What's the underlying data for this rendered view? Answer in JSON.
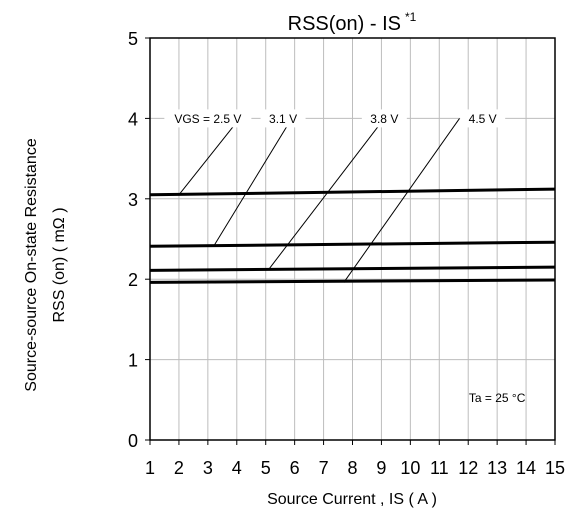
{
  "chart_data": {
    "type": "line",
    "title": "RSS(on) - IS",
    "title_superscript": "*1",
    "xlabel": "Source Current , IS ( A )",
    "ylabel_line1": "Source-source On-state Resistance",
    "ylabel_line2": "RSS (on) ( mΩ )",
    "xlim": [
      1,
      15
    ],
    "ylim": [
      0,
      5
    ],
    "xticks": [
      1,
      2,
      3,
      4,
      5,
      6,
      7,
      8,
      9,
      10,
      11,
      12,
      13,
      14,
      15
    ],
    "yticks": [
      0,
      1,
      2,
      3,
      4,
      5
    ],
    "grid": true,
    "series": [
      {
        "name": "VGS = 2.5 V",
        "x": [
          1,
          15
        ],
        "y": [
          3.05,
          3.12
        ],
        "leader_from": [
          2,
          3.05
        ],
        "leader_to": [
          4.1,
          4.0
        ]
      },
      {
        "name": "3.1 V",
        "x": [
          1,
          15
        ],
        "y": [
          2.41,
          2.46
        ],
        "leader_from": [
          3.2,
          2.41
        ],
        "leader_to": [
          5.9,
          4.0
        ]
      },
      {
        "name": "3.8 V",
        "x": [
          1,
          15
        ],
        "y": [
          2.11,
          2.15
        ],
        "leader_from": [
          5.1,
          2.12
        ],
        "leader_to": [
          9.1,
          4.0
        ]
      },
      {
        "name": "4.5 V",
        "x": [
          1,
          15
        ],
        "y": [
          1.96,
          1.99
        ],
        "leader_from": [
          7.7,
          1.96
        ],
        "leader_to": [
          11.7,
          4.0
        ]
      }
    ],
    "series_label_positions": [
      {
        "x": 3.0,
        "y": 4.0
      },
      {
        "x": 5.6,
        "y": 4.0
      },
      {
        "x": 9.1,
        "y": 4.0
      },
      {
        "x": 12.5,
        "y": 4.0
      }
    ],
    "annotation": "Ta = 25 °C",
    "annotation_position": {
      "x": 13.0,
      "y": 0.52
    }
  }
}
